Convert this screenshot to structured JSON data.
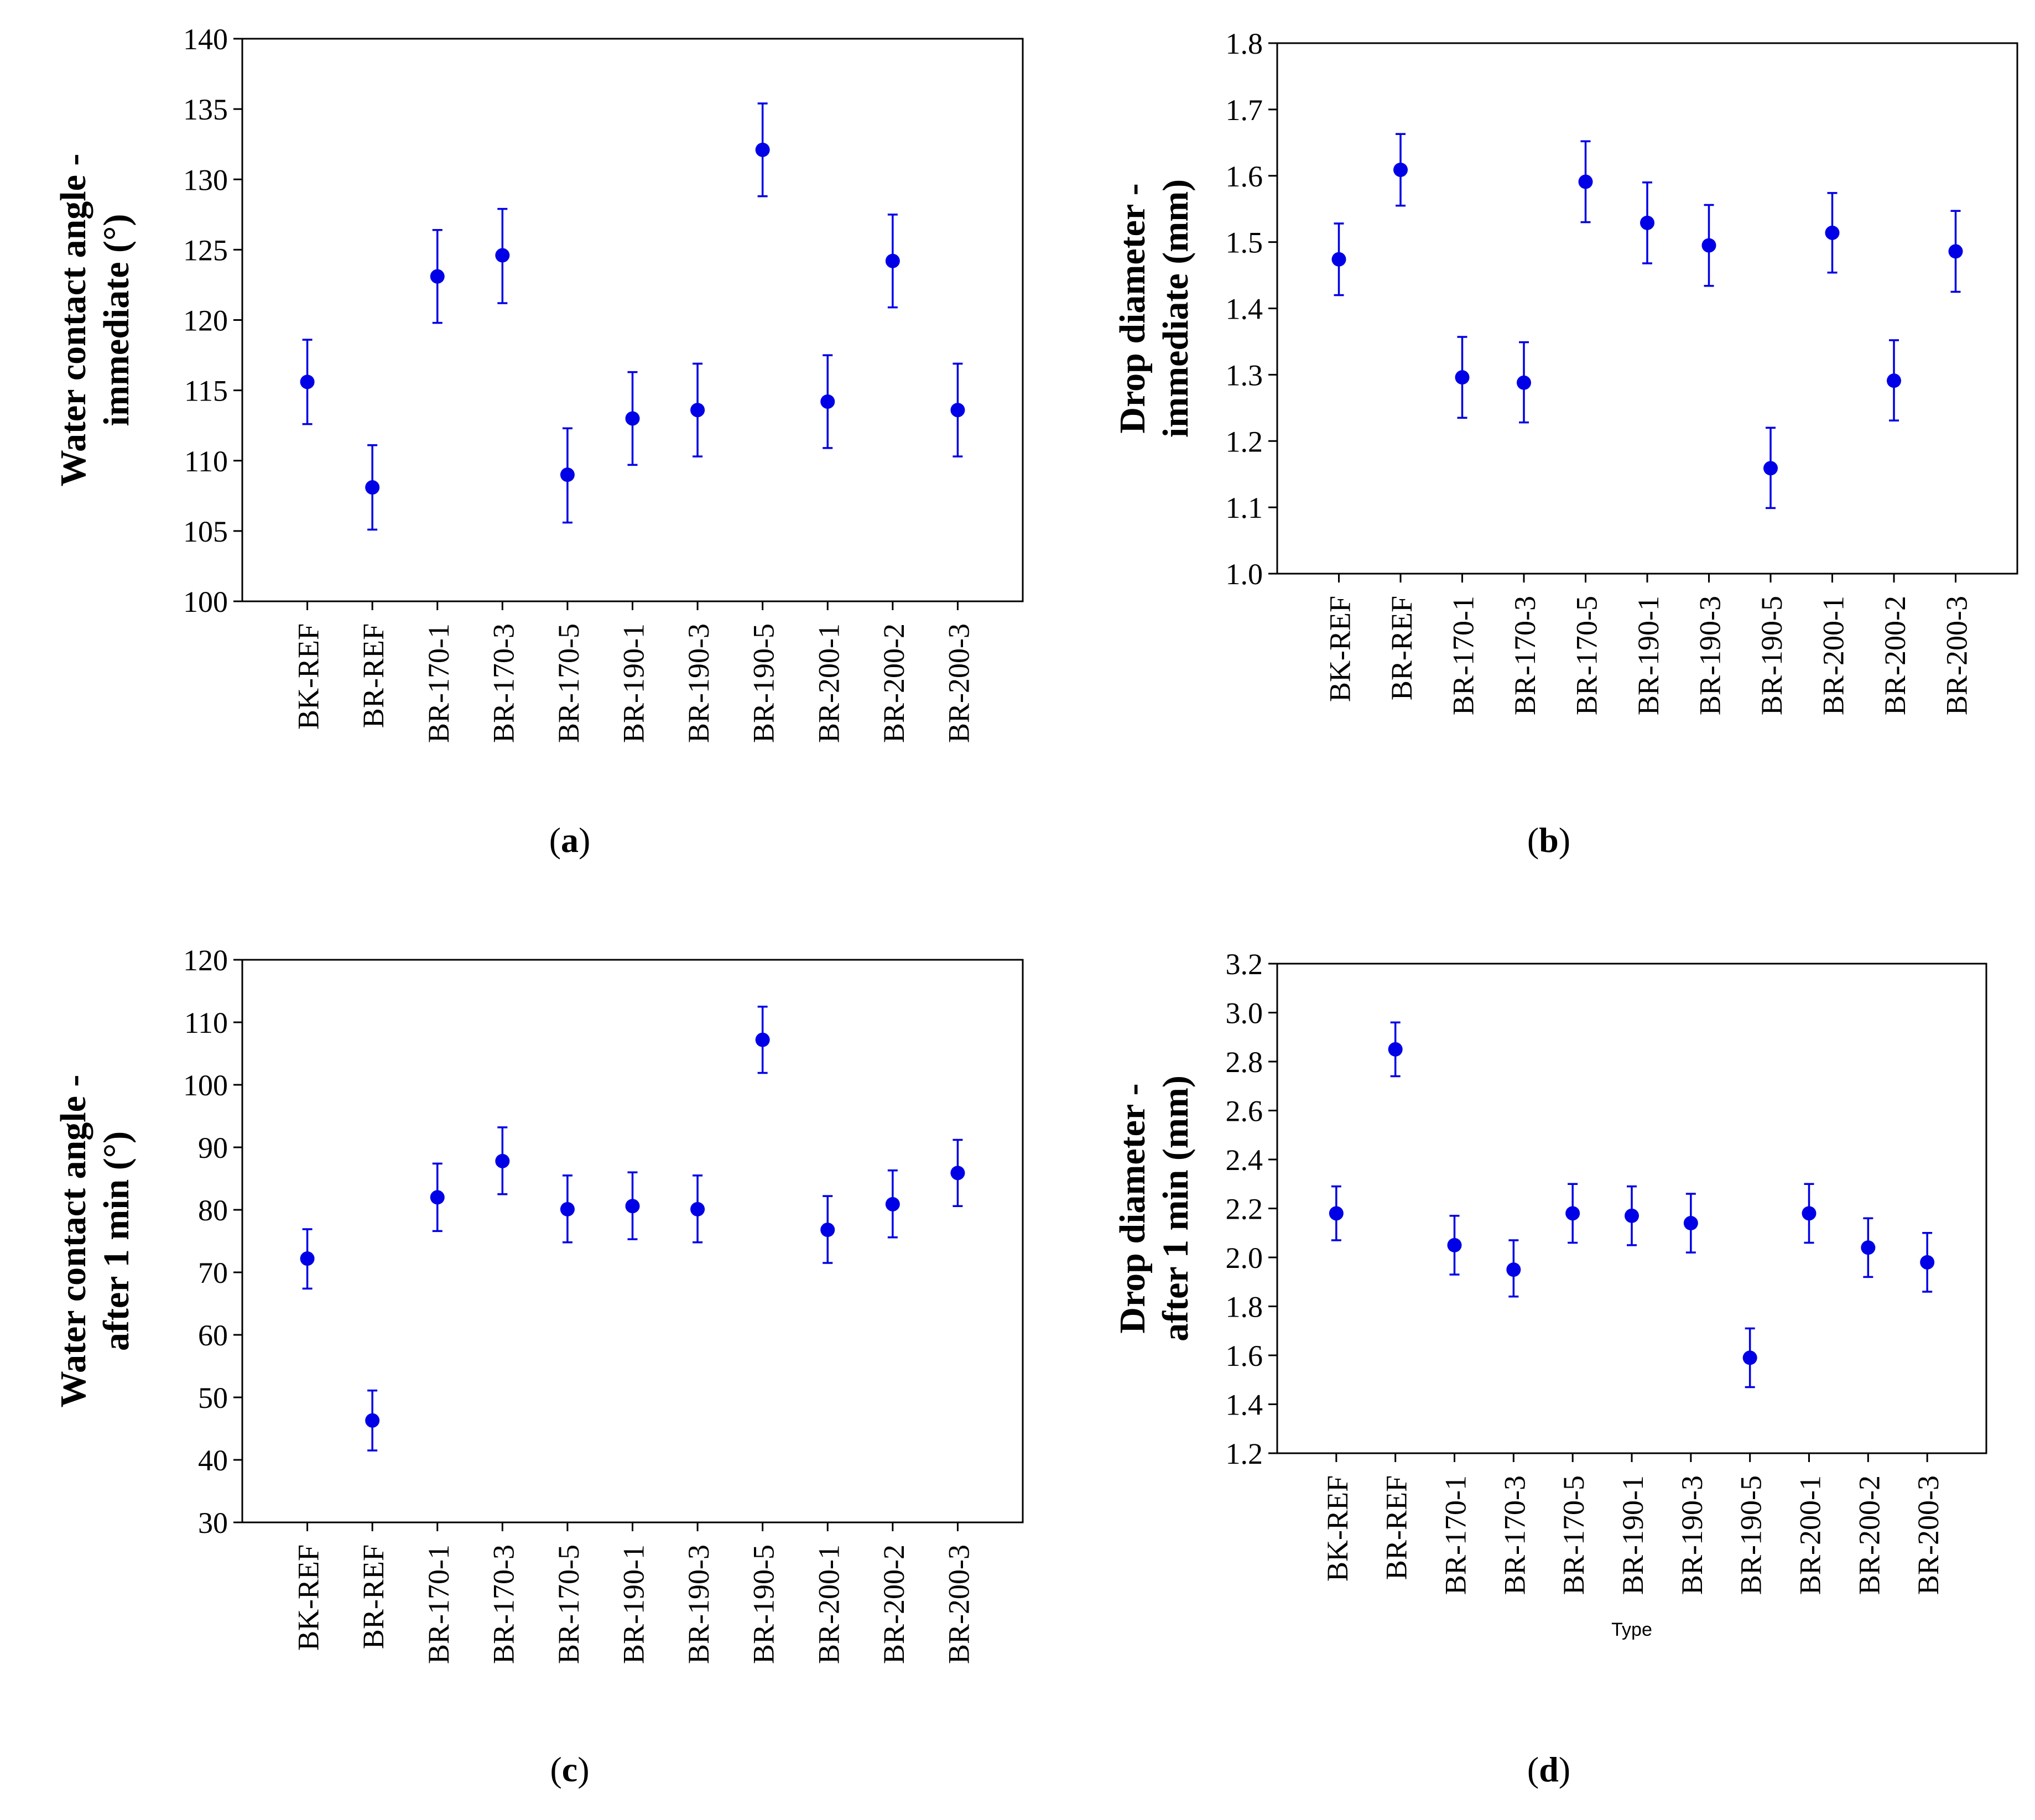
{
  "colors": {
    "series": "#0000e6",
    "axis": "#000000"
  },
  "chart_data": [
    {
      "type": "scatter",
      "panel": "a",
      "caption_open": "(",
      "caption_letter": "a",
      "caption_close": ")",
      "ylabel_line1": "Water contact angle -",
      "ylabel_line2": "immediate (°)",
      "xlabel": "",
      "categories": [
        "BK-REF",
        "BR-REF",
        "BR-170-1",
        "BR-170-3",
        "BR-170-5",
        "BR-190-1",
        "BR-190-3",
        "BR-190-5",
        "BR-200-1",
        "BR-200-2",
        "BR-200-3"
      ],
      "values": [
        115.6,
        108.1,
        123.1,
        124.6,
        109.0,
        113.0,
        113.6,
        132.1,
        114.2,
        124.2,
        113.6
      ],
      "err_low": [
        112.6,
        105.1,
        119.8,
        121.2,
        105.6,
        109.7,
        110.3,
        128.8,
        110.9,
        120.9,
        110.3
      ],
      "err_high": [
        118.6,
        111.1,
        126.4,
        127.9,
        112.3,
        116.3,
        116.9,
        135.4,
        117.5,
        127.5,
        116.9
      ],
      "ylim": [
        100,
        140
      ],
      "yticks": [
        "100",
        "105",
        "110",
        "115",
        "120",
        "125",
        "130",
        "135",
        "140"
      ]
    },
    {
      "type": "scatter",
      "panel": "b",
      "caption_open": "(",
      "caption_letter": "b",
      "caption_close": ")",
      "ylabel_line1": "Drop diameter -",
      "ylabel_line2": "immediate (mm)",
      "xlabel": "",
      "categories": [
        "BK-REF",
        "BR-REF",
        "BR-170-1",
        "BR-170-3",
        "BR-170-5",
        "BR-190-1",
        "BR-190-3",
        "BR-190-5",
        "BR-200-1",
        "BR-200-2",
        "BR-200-3"
      ],
      "values": [
        1.474,
        1.609,
        1.296,
        1.288,
        1.591,
        1.529,
        1.495,
        1.159,
        1.514,
        1.291,
        1.486
      ],
      "err_low": [
        1.42,
        1.555,
        1.235,
        1.228,
        1.53,
        1.468,
        1.434,
        1.099,
        1.454,
        1.231,
        1.425
      ],
      "err_high": [
        1.528,
        1.663,
        1.357,
        1.349,
        1.652,
        1.59,
        1.556,
        1.22,
        1.574,
        1.352,
        1.547
      ],
      "ylim": [
        1.0,
        1.8
      ],
      "yticks": [
        "1.0",
        "1.1",
        "1.2",
        "1.3",
        "1.4",
        "1.5",
        "1.6",
        "1.7",
        "1.8"
      ]
    },
    {
      "type": "scatter",
      "panel": "c",
      "caption_open": "(",
      "caption_letter": "c",
      "caption_close": ")",
      "ylabel_line1": "Water contact angle -",
      "ylabel_line2": "after 1 min (°)",
      "xlabel": "",
      "categories": [
        "BK-REF",
        "BR-REF",
        "BR-170-1",
        "BR-170-3",
        "BR-170-5",
        "BR-190-1",
        "BR-190-3",
        "BR-190-5",
        "BR-200-1",
        "BR-200-2",
        "BR-200-3"
      ],
      "values": [
        72.2,
        46.3,
        82.0,
        87.8,
        80.1,
        80.6,
        80.1,
        107.2,
        76.8,
        80.9,
        85.9
      ],
      "err_low": [
        67.4,
        41.5,
        76.6,
        82.5,
        74.8,
        75.3,
        74.8,
        101.9,
        71.5,
        75.6,
        80.6
      ],
      "err_high": [
        76.9,
        51.1,
        87.4,
        93.2,
        85.5,
        86.0,
        85.5,
        112.5,
        82.2,
        86.3,
        91.2
      ],
      "ylim": [
        30,
        120
      ],
      "yticks": [
        "30",
        "40",
        "50",
        "60",
        "70",
        "80",
        "90",
        "100",
        "110",
        "120"
      ]
    },
    {
      "type": "scatter",
      "panel": "d",
      "caption_open": "(",
      "caption_letter": "d",
      "caption_close": ")",
      "ylabel_line1": "Drop diameter -",
      "ylabel_line2": "after 1 min (mm)",
      "xlabel": "Type",
      "categories": [
        "BK-REF",
        "BR-REF",
        "BR-170-1",
        "BR-170-3",
        "BR-170-5",
        "BR-190-1",
        "BR-190-3",
        "BR-190-5",
        "BR-200-1",
        "BR-200-2",
        "BR-200-3"
      ],
      "values": [
        2.18,
        2.85,
        2.05,
        1.95,
        2.18,
        2.17,
        2.14,
        1.59,
        2.18,
        2.04,
        1.98
      ],
      "err_low": [
        2.07,
        2.74,
        1.93,
        1.84,
        2.06,
        2.05,
        2.02,
        1.47,
        2.06,
        1.92,
        1.86
      ],
      "err_high": [
        2.29,
        2.96,
        2.17,
        2.07,
        2.3,
        2.29,
        2.26,
        1.71,
        2.3,
        2.16,
        2.1
      ],
      "ylim": [
        1.2,
        3.2
      ],
      "yticks": [
        "1.2",
        "1.4",
        "1.6",
        "1.8",
        "2.0",
        "2.2",
        "2.4",
        "2.6",
        "2.8",
        "3.0",
        "3.2"
      ]
    }
  ]
}
